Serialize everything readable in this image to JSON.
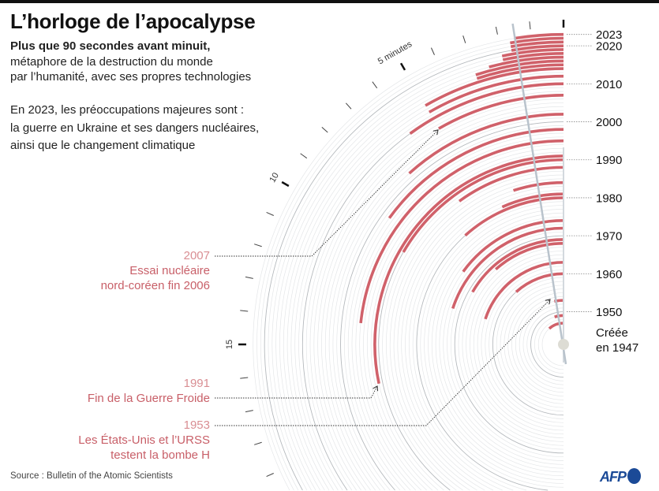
{
  "header": {
    "title": "L’horloge de l’apocalypse",
    "subtitle_bold": "Plus que 90 secondes avant minuit,",
    "subtitle_line2": "métaphore de la destruction du monde",
    "subtitle_line3": "par l’humanité, avec ses propres technologies",
    "para_line1": "En 2023, les préoccupations majeures sont :",
    "para_line2": "la guerre en Ukraine et ses dangers nucléaires,",
    "para_line3": "ainsi que le changement climatique"
  },
  "annotations": [
    {
      "year": "2007",
      "line1": "Essai nucléaire",
      "line2": "nord-coréen fin 2006"
    },
    {
      "year": "1991",
      "line1": "Fin de la Guerre Froide",
      "line2": ""
    },
    {
      "year": "1953",
      "line1": "Les États-Unis et l’URSS",
      "line2": "testent la bombe H"
    }
  ],
  "created_label": {
    "line1": "Créée",
    "line2": "en 1947"
  },
  "footer": {
    "source": "Source : Bulletin of the Atomic Scientists",
    "logo": "AFP"
  },
  "colors": {
    "arc": "#d0616a",
    "annotation": "#c85f68",
    "hand": "#b9c3cc",
    "brand": "#1b4a97"
  },
  "chart_data": {
    "type": "radial-bar",
    "title": "L’horloge de l’apocalypse",
    "year_axis_labels": [
      "2023",
      "2020",
      "2010",
      "2000",
      "1990",
      "1980",
      "1970",
      "1960",
      "1950"
    ],
    "minute_tick_labels": [
      "5 minutes",
      "10",
      "15"
    ],
    "minute_range": [
      0,
      20
    ],
    "year_range": [
      1947,
      2023
    ],
    "values": [
      {
        "year": 1947,
        "minutes": 7
      },
      {
        "year": 1949,
        "minutes": 3
      },
      {
        "year": 1953,
        "minutes": 2
      },
      {
        "year": 1960,
        "minutes": 7
      },
      {
        "year": 1963,
        "minutes": 12
      },
      {
        "year": 1968,
        "minutes": 7
      },
      {
        "year": 1969,
        "minutes": 10
      },
      {
        "year": 1972,
        "minutes": 12
      },
      {
        "year": 1974,
        "minutes": 9
      },
      {
        "year": 1980,
        "minutes": 7
      },
      {
        "year": 1981,
        "minutes": 4
      },
      {
        "year": 1984,
        "minutes": 3
      },
      {
        "year": 1988,
        "minutes": 6
      },
      {
        "year": 1990,
        "minutes": 10
      },
      {
        "year": 1991,
        "minutes": 17
      },
      {
        "year": 1995,
        "minutes": 14
      },
      {
        "year": 1998,
        "minutes": 9
      },
      {
        "year": 2002,
        "minutes": 7
      },
      {
        "year": 2007,
        "minutes": 5
      },
      {
        "year": 2010,
        "minutes": 6
      },
      {
        "year": 2012,
        "minutes": 5
      },
      {
        "year": 2014,
        "minutes": 5
      },
      {
        "year": 2015,
        "minutes": 3
      },
      {
        "year": 2016,
        "minutes": 3
      },
      {
        "year": 2017,
        "minutes": 2.5
      },
      {
        "year": 2018,
        "minutes": 2
      },
      {
        "year": 2019,
        "minutes": 2
      },
      {
        "year": 2020,
        "minutes": 1.67
      },
      {
        "year": 2021,
        "minutes": 1.67
      },
      {
        "year": 2022,
        "minutes": 1.67
      },
      {
        "year": 2023,
        "minutes": 1.5
      }
    ],
    "current_hand_minutes": 1.5
  }
}
